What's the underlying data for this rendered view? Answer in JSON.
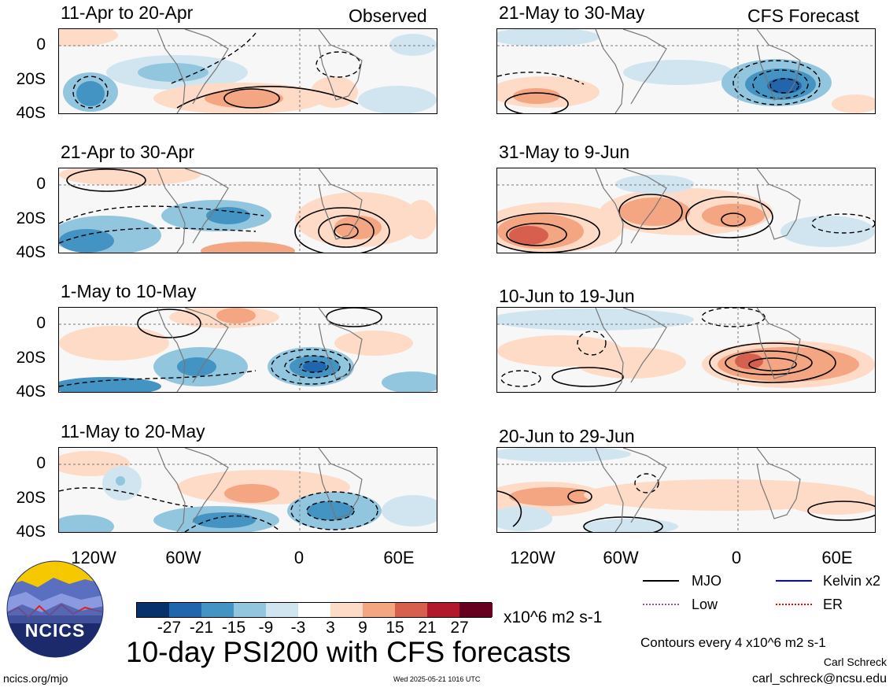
{
  "panels": [
    {
      "title": "11-Apr to 20-Apr",
      "tag": "Observed"
    },
    {
      "title": "21-Apr to 30-Apr",
      "tag": ""
    },
    {
      "title": "1-May to 10-May",
      "tag": ""
    },
    {
      "title": "11-May to 20-May",
      "tag": ""
    },
    {
      "title": "21-May to 30-May",
      "tag": "CFS Forecast"
    },
    {
      "title": "31-May to 9-Jun",
      "tag": ""
    },
    {
      "title": "10-Jun to 19-Jun",
      "tag": ""
    },
    {
      "title": "20-Jun to 29-Jun",
      "tag": ""
    }
  ],
  "y_ticks": [
    "0",
    "20S",
    "40S"
  ],
  "x_ticks": [
    "120W",
    "60W",
    "0",
    "60E"
  ],
  "colorbar": {
    "labels": [
      "-27",
      "-21",
      "-15",
      "-9",
      "-3",
      "3",
      "9",
      "15",
      "21",
      "27"
    ],
    "units": "x10^6 m2 s-1",
    "colors": [
      "#08306b",
      "#2166ac",
      "#4393c3",
      "#92c5de",
      "#d1e5f0",
      "#ffffff",
      "#fddbc7",
      "#f4a582",
      "#d6604d",
      "#b2182b",
      "#67001f"
    ]
  },
  "legend": {
    "items": [
      {
        "label": "MJO",
        "color": "#000000"
      },
      {
        "label": "Kelvin x2",
        "color": "#0000ff"
      },
      {
        "label": "Low",
        "color": "#a040ff"
      },
      {
        "label": "ER",
        "color": "#ff0000"
      }
    ],
    "contour_note": "Contours every 4 x10^6 m2 s-1"
  },
  "main_title": "10-day PSI200 with CFS forecasts",
  "logo_text": "NCICS",
  "footer": {
    "url": "ncics.org/mjo",
    "timestamp": "Wed 2025-05-21 1016 UTC",
    "author": "Carl Schreck",
    "email": "carl_schreck@ncsu.edu"
  }
}
